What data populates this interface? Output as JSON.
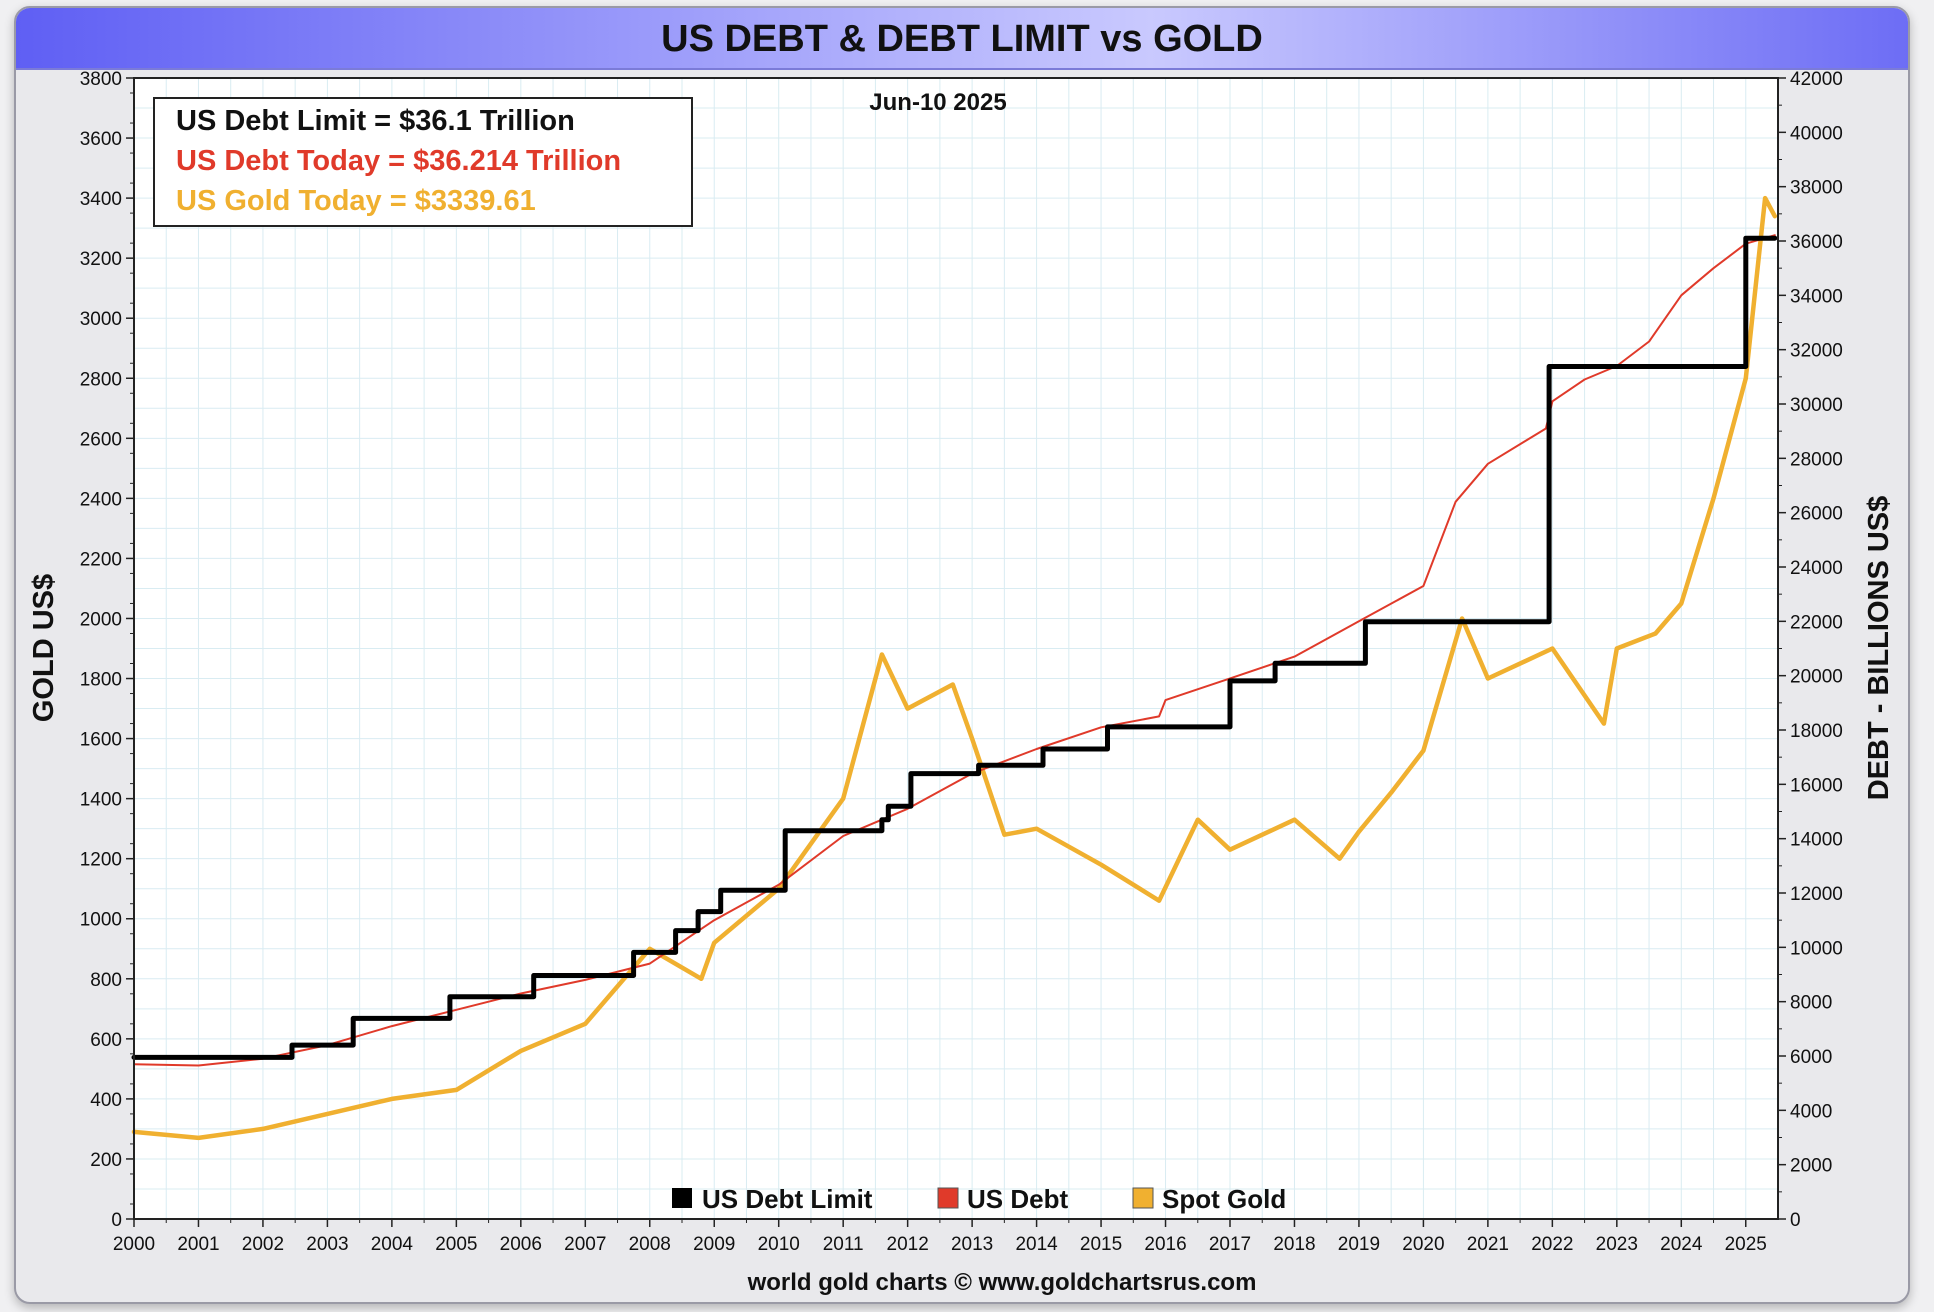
{
  "chart_data": {
    "type": "line",
    "title": "US DEBT & DEBT LIMIT vs GOLD",
    "date_label": "Jun-10  2025",
    "ylabel": "GOLD US$",
    "y2label": "DEBT - BILLIONS US$",
    "credit": "world gold charts © www.goldchartsrus.com",
    "xlim": [
      2000,
      2025.5
    ],
    "ylim": [
      0,
      3800
    ],
    "y2lim": [
      0,
      42000
    ],
    "x_ticks": [
      "2000",
      "2001",
      "2002",
      "2003",
      "2004",
      "2005",
      "2006",
      "2007",
      "2008",
      "2009",
      "2010",
      "2011",
      "2012",
      "2013",
      "2014",
      "2015",
      "2016",
      "2017",
      "2018",
      "2019",
      "2020",
      "2021",
      "2022",
      "2023",
      "2024",
      "2025"
    ],
    "y_ticks": [
      "0",
      "200",
      "400",
      "600",
      "800",
      "1000",
      "1200",
      "1400",
      "1600",
      "1800",
      "2000",
      "2200",
      "2400",
      "2600",
      "2800",
      "3000",
      "3200",
      "3400",
      "3600",
      "3800"
    ],
    "y2_ticks": [
      "0",
      "2000",
      "4000",
      "6000",
      "8000",
      "10000",
      "12000",
      "14000",
      "16000",
      "18000",
      "20000",
      "22000",
      "24000",
      "26000",
      "28000",
      "30000",
      "32000",
      "34000",
      "36000",
      "38000",
      "40000",
      "42000"
    ],
    "grid": true,
    "info_box": [
      {
        "text": "US Debt Limit    = $36.1 Trillion",
        "color": "#111111"
      },
      {
        "text": "US Debt Today = $36.214 Trillion",
        "color": "#e03a2a"
      },
      {
        "text": "US Gold Today = $3339.61",
        "color": "#f0b030"
      }
    ],
    "legend": [
      {
        "name": "US Debt Limit",
        "color": "#000000"
      },
      {
        "name": "US Debt",
        "color": "#e03a2a"
      },
      {
        "name": "Spot Gold",
        "color": "#f0b030"
      }
    ],
    "series": [
      {
        "name": "US Debt Limit",
        "axis": "right",
        "color": "#000000",
        "step": true,
        "points": [
          [
            2000,
            5950
          ],
          [
            2002.45,
            6400
          ],
          [
            2003.4,
            7384
          ],
          [
            2004.9,
            8184
          ],
          [
            2006.2,
            8965
          ],
          [
            2007.75,
            9815
          ],
          [
            2008.4,
            10615
          ],
          [
            2008.75,
            11315
          ],
          [
            2009.1,
            12104
          ],
          [
            2010.1,
            14294
          ],
          [
            2011.6,
            14694
          ],
          [
            2011.7,
            15194
          ],
          [
            2012.05,
            16394
          ],
          [
            2013.1,
            16700
          ],
          [
            2014.1,
            17300
          ],
          [
            2015.1,
            18113
          ],
          [
            2017.0,
            19808
          ],
          [
            2017.7,
            20456
          ],
          [
            2019.1,
            21988
          ],
          [
            2021.95,
            31381
          ],
          [
            2025.0,
            36104
          ],
          [
            2025.45,
            36104
          ]
        ]
      },
      {
        "name": "US Debt",
        "axis": "right",
        "color": "#e03a2a",
        "points": [
          [
            2000,
            5700
          ],
          [
            2001,
            5650
          ],
          [
            2002,
            5900
          ],
          [
            2003,
            6400
          ],
          [
            2004,
            7100
          ],
          [
            2005,
            7700
          ],
          [
            2006,
            8300
          ],
          [
            2007,
            8800
          ],
          [
            2008,
            9400
          ],
          [
            2009,
            11000
          ],
          [
            2010,
            12300
          ],
          [
            2011,
            14100
          ],
          [
            2012,
            15100
          ],
          [
            2013,
            16400
          ],
          [
            2014,
            17300
          ],
          [
            2015,
            18100
          ],
          [
            2015.9,
            18500
          ],
          [
            2016,
            19100
          ],
          [
            2017,
            19900
          ],
          [
            2018,
            20700
          ],
          [
            2019,
            22000
          ],
          [
            2020,
            23300
          ],
          [
            2020.5,
            26400
          ],
          [
            2021,
            27800
          ],
          [
            2021.9,
            29100
          ],
          [
            2022,
            30100
          ],
          [
            2022.5,
            30900
          ],
          [
            2023,
            31400
          ],
          [
            2023.5,
            32300
          ],
          [
            2024,
            34000
          ],
          [
            2024.5,
            35000
          ],
          [
            2025,
            35900
          ],
          [
            2025.45,
            36214
          ]
        ]
      },
      {
        "name": "Spot Gold",
        "axis": "left",
        "color": "#f0b030",
        "points": [
          [
            2000,
            290
          ],
          [
            2001,
            270
          ],
          [
            2002,
            300
          ],
          [
            2003,
            350
          ],
          [
            2004,
            400
          ],
          [
            2005,
            430
          ],
          [
            2006,
            560
          ],
          [
            2007,
            650
          ],
          [
            2008,
            900
          ],
          [
            2008.8,
            800
          ],
          [
            2009,
            920
          ],
          [
            2010,
            1100
          ],
          [
            2011,
            1400
          ],
          [
            2011.6,
            1880
          ],
          [
            2012,
            1700
          ],
          [
            2012.7,
            1780
          ],
          [
            2013,
            1600
          ],
          [
            2013.5,
            1280
          ],
          [
            2014,
            1300
          ],
          [
            2015,
            1180
          ],
          [
            2015.9,
            1060
          ],
          [
            2016.5,
            1330
          ],
          [
            2017,
            1230
          ],
          [
            2018,
            1330
          ],
          [
            2018.7,
            1200
          ],
          [
            2019,
            1290
          ],
          [
            2019.5,
            1420
          ],
          [
            2020,
            1560
          ],
          [
            2020.6,
            2000
          ],
          [
            2021,
            1800
          ],
          [
            2022,
            1900
          ],
          [
            2022.8,
            1650
          ],
          [
            2023,
            1900
          ],
          [
            2023.6,
            1950
          ],
          [
            2024,
            2050
          ],
          [
            2024.5,
            2400
          ],
          [
            2025,
            2800
          ],
          [
            2025.3,
            3400
          ],
          [
            2025.45,
            3339.61
          ]
        ]
      }
    ]
  }
}
